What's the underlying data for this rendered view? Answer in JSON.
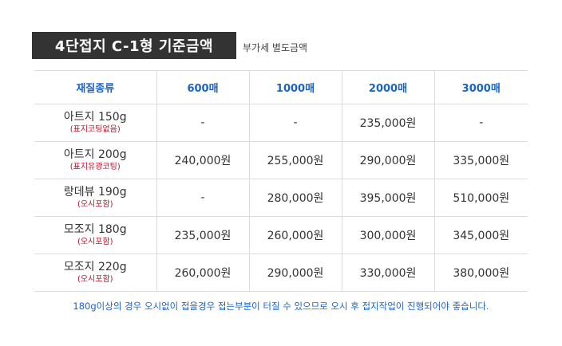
{
  "header": {
    "title": "4단접지 C-1형 기준금액",
    "vat_note": "부가세 별도금액"
  },
  "table": {
    "columns": [
      "재질종류",
      "600매",
      "1000매",
      "2000매",
      "3000매"
    ],
    "rows": [
      {
        "name": "아트지 150g",
        "note": "(표지코팅없음)",
        "prices": [
          "-",
          "-",
          "235,000원",
          "-"
        ]
      },
      {
        "name": "아트지 200g",
        "note": "(표지유광코팅)",
        "prices": [
          "240,000원",
          "255,000원",
          "290,000원",
          "335,000원"
        ]
      },
      {
        "name": "랑데뷰 190g",
        "note": "(오시포함)",
        "prices": [
          "-",
          "280,000원",
          "395,000원",
          "510,000원"
        ]
      },
      {
        "name": "모조지 180g",
        "note": "(오시포함)",
        "prices": [
          "235,000원",
          "260,000원",
          "300,000원",
          "345,000원"
        ]
      },
      {
        "name": "모조지 220g",
        "note": "(오시포함)",
        "prices": [
          "260,000원",
          "290,000원",
          "330,000원",
          "380,000원"
        ]
      }
    ]
  },
  "footnote": "180g이상의 경우 오시없이 접을경우 접는부분이 터질 수 있으므로 오시 후 접지작업이 진행되어야 좋습니다.",
  "colors": {
    "accent": "#1a63c7",
    "note": "#c0102a",
    "title_bg": "#333333"
  }
}
